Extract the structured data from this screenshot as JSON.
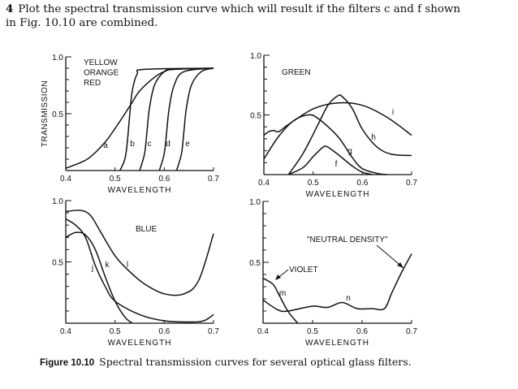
{
  "problem": {
    "number": "4",
    "text": "Plot the spectral transmission curve which will result if the filters c and f shown in Fig. 10.10 are combined."
  },
  "caption": {
    "label": "Figure 10.10",
    "text": "Spectral transmission curves for several optical glass filters."
  },
  "chart_data": [
    {
      "type": "line",
      "title": "YELLOW ORANGE RED",
      "title_lines": [
        "YELLOW",
        "ORANGE",
        "RED"
      ],
      "xlabel": "WAVELENGTH",
      "ylabel": "TRANSMISSION",
      "xlim": [
        0.4,
        0.7
      ],
      "ylim": [
        0,
        1.0
      ],
      "xticks": [
        "0.4",
        "0.5",
        "0.6",
        "0.7"
      ],
      "yticks": [
        "1.0",
        "0.5"
      ],
      "grid": false,
      "series": [
        {
          "name": "a",
          "x": [
            0.4,
            0.43,
            0.45,
            0.48,
            0.5,
            0.52,
            0.535,
            0.55,
            0.58,
            0.6,
            0.62,
            0.7
          ],
          "y": [
            0.02,
            0.07,
            0.12,
            0.25,
            0.37,
            0.5,
            0.6,
            0.7,
            0.82,
            0.87,
            0.89,
            0.9
          ]
        },
        {
          "name": "b",
          "x": [
            0.51,
            0.52,
            0.525,
            0.53,
            0.535,
            0.545,
            0.56,
            0.7
          ],
          "y": [
            0,
            0.1,
            0.25,
            0.5,
            0.7,
            0.85,
            0.89,
            0.9
          ]
        },
        {
          "name": "c",
          "x": [
            0.55,
            0.56,
            0.565,
            0.57,
            0.58,
            0.6,
            0.62,
            0.7
          ],
          "y": [
            0,
            0.15,
            0.35,
            0.55,
            0.75,
            0.87,
            0.89,
            0.9
          ]
        },
        {
          "name": "d",
          "x": [
            0.59,
            0.6,
            0.605,
            0.61,
            0.62,
            0.64,
            0.7
          ],
          "y": [
            0,
            0.15,
            0.35,
            0.55,
            0.75,
            0.87,
            0.9
          ]
        },
        {
          "name": "e",
          "x": [
            0.625,
            0.635,
            0.64,
            0.645,
            0.655,
            0.675,
            0.7
          ],
          "y": [
            0,
            0.15,
            0.35,
            0.55,
            0.75,
            0.87,
            0.9
          ]
        }
      ]
    },
    {
      "type": "line",
      "title": "GREEN",
      "xlabel": "WAVELENGTH",
      "xlim": [
        0.4,
        0.7
      ],
      "ylim": [
        0,
        1.0
      ],
      "xticks": [
        "0.4",
        "0.5",
        "0.6",
        "0.7"
      ],
      "yticks": [
        "1.0",
        "0.5"
      ],
      "grid": false,
      "series": [
        {
          "name": "f",
          "x": [
            0.45,
            0.48,
            0.5,
            0.52,
            0.53,
            0.55,
            0.58,
            0.6,
            0.62
          ],
          "y": [
            0,
            0.06,
            0.15,
            0.23,
            0.23,
            0.17,
            0.07,
            0.02,
            0
          ]
        },
        {
          "name": "g",
          "x": [
            0.4,
            0.43,
            0.46,
            0.49,
            0.51,
            0.55,
            0.58,
            0.6,
            0.63,
            0.65
          ],
          "y": [
            0.13,
            0.32,
            0.45,
            0.5,
            0.47,
            0.32,
            0.14,
            0.05,
            0.01,
            0
          ]
        },
        {
          "name": "h",
          "x": [
            0.45,
            0.48,
            0.51,
            0.53,
            0.55,
            0.56,
            0.58,
            0.6,
            0.63,
            0.66,
            0.7
          ],
          "y": [
            0,
            0.18,
            0.42,
            0.58,
            0.66,
            0.65,
            0.55,
            0.38,
            0.23,
            0.17,
            0.16
          ]
        },
        {
          "name": "i",
          "x": [
            0.4,
            0.41,
            0.42,
            0.43,
            0.45,
            0.5,
            0.55,
            0.6,
            0.65,
            0.7
          ],
          "y": [
            0.33,
            0.36,
            0.37,
            0.36,
            0.42,
            0.55,
            0.6,
            0.58,
            0.48,
            0.33
          ]
        }
      ]
    },
    {
      "type": "line",
      "title": "BLUE",
      "xlabel": "WAVELENGTH",
      "xlim": [
        0.4,
        0.7
      ],
      "ylim": [
        0,
        1.0
      ],
      "xticks": [
        "0.4",
        "0.5",
        "0.6",
        "0.7"
      ],
      "yticks": [
        "1.0",
        "0.5"
      ],
      "grid": false,
      "series": [
        {
          "name": "j",
          "x": [
            0.4,
            0.42,
            0.44,
            0.46,
            0.48,
            0.5,
            0.55,
            0.6,
            0.65,
            0.68,
            0.7
          ],
          "y": [
            0.85,
            0.8,
            0.7,
            0.47,
            0.3,
            0.18,
            0.07,
            0.02,
            0.01,
            0.02,
            0.07
          ]
        },
        {
          "name": "k",
          "x": [
            0.4,
            0.42,
            0.44,
            0.46,
            0.48,
            0.5,
            0.52,
            0.535
          ],
          "y": [
            0.7,
            0.74,
            0.72,
            0.6,
            0.38,
            0.18,
            0.05,
            0
          ]
        },
        {
          "name": "l",
          "x": [
            0.4,
            0.43,
            0.45,
            0.47,
            0.5,
            0.53,
            0.56,
            0.6,
            0.64,
            0.67,
            0.7
          ],
          "y": [
            0.91,
            0.92,
            0.88,
            0.75,
            0.55,
            0.42,
            0.32,
            0.24,
            0.24,
            0.35,
            0.73
          ]
        }
      ]
    },
    {
      "type": "line",
      "xlabel": "WAVELENGTH",
      "xlim": [
        0.4,
        0.7
      ],
      "ylim": [
        0,
        1.0
      ],
      "xticks": [
        "0.4",
        "0.5",
        "0.6",
        "0.7"
      ],
      "yticks": [
        "1.0",
        "0.5"
      ],
      "grid": false,
      "annotations": [
        "\"NEUTRAL DENSITY\"",
        "VIOLET"
      ],
      "series": [
        {
          "name": "m",
          "x": [
            0.4,
            0.42,
            0.43,
            0.45,
            0.47
          ],
          "y": [
            0.37,
            0.32,
            0.25,
            0.1,
            0
          ]
        },
        {
          "name": "n",
          "x": [
            0.4,
            0.43,
            0.45,
            0.5,
            0.53,
            0.56,
            0.59,
            0.62,
            0.645,
            0.66,
            0.68,
            0.7
          ],
          "y": [
            0.19,
            0.11,
            0.1,
            0.14,
            0.13,
            0.17,
            0.12,
            0.12,
            0.12,
            0.25,
            0.42,
            0.57
          ]
        }
      ]
    }
  ]
}
